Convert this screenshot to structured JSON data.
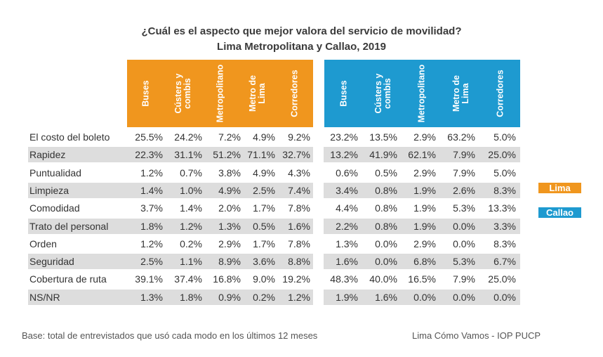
{
  "chart_data": {
    "type": "table",
    "title": "¿Cuál es el aspecto que mejor valora del servicio de movilidad?",
    "subtitle": "Lima Metropolitana y Callao, 2019",
    "columns": [
      "Buses",
      "Cústers y\ncombis",
      "Metropolitano",
      "Metro de\nLima",
      "Corredores"
    ],
    "groups": [
      {
        "name": "Lima",
        "color": "#F0961E"
      },
      {
        "name": "Callao",
        "color": "#1E9AD0"
      }
    ],
    "rows": [
      {
        "label": "El costo del boleto",
        "lima": [
          "25.5%",
          "24.2%",
          "7.2%",
          "4.9%",
          "9.2%"
        ],
        "callao": [
          "23.2%",
          "13.5%",
          "2.9%",
          "63.2%",
          "5.0%"
        ]
      },
      {
        "label": "Rapidez",
        "lima": [
          "22.3%",
          "31.1%",
          "51.2%",
          "71.1%",
          "32.7%"
        ],
        "callao": [
          "13.2%",
          "41.9%",
          "62.1%",
          "7.9%",
          "25.0%"
        ]
      },
      {
        "label": "Puntualidad",
        "lima": [
          "1.2%",
          "0.7%",
          "3.8%",
          "4.9%",
          "4.3%"
        ],
        "callao": [
          "0.6%",
          "0.5%",
          "2.9%",
          "7.9%",
          "5.0%"
        ]
      },
      {
        "label": "Limpieza",
        "lima": [
          "1.4%",
          "1.0%",
          "4.9%",
          "2.5%",
          "7.4%"
        ],
        "callao": [
          "3.4%",
          "0.8%",
          "1.9%",
          "2.6%",
          "8.3%"
        ]
      },
      {
        "label": "Comodidad",
        "lima": [
          "3.7%",
          "1.4%",
          "2.0%",
          "1.7%",
          "7.8%"
        ],
        "callao": [
          "4.4%",
          "0.8%",
          "1.9%",
          "5.3%",
          "13.3%"
        ]
      },
      {
        "label": "Trato del personal",
        "lima": [
          "1.8%",
          "1.2%",
          "1.3%",
          "0.5%",
          "1.6%"
        ],
        "callao": [
          "2.2%",
          "0.8%",
          "1.9%",
          "0.0%",
          "3.3%"
        ]
      },
      {
        "label": "Orden",
        "lima": [
          "1.2%",
          "0.2%",
          "2.9%",
          "1.7%",
          "7.8%"
        ],
        "callao": [
          "1.3%",
          "0.0%",
          "2.9%",
          "0.0%",
          "8.3%"
        ]
      },
      {
        "label": "Seguridad",
        "lima": [
          "2.5%",
          "1.1%",
          "8.9%",
          "3.6%",
          "8.8%"
        ],
        "callao": [
          "1.6%",
          "0.0%",
          "6.8%",
          "5.3%",
          "6.7%"
        ]
      },
      {
        "label": "Cobertura de ruta",
        "lima": [
          "39.1%",
          "37.4%",
          "16.8%",
          "9.0%",
          "19.2%"
        ],
        "callao": [
          "48.3%",
          "40.0%",
          "16.5%",
          "7.9%",
          "25.0%"
        ]
      },
      {
        "label": "NS/NR",
        "lima": [
          "1.3%",
          "1.8%",
          "0.9%",
          "0.2%",
          "1.2%"
        ],
        "callao": [
          "1.9%",
          "1.6%",
          "0.0%",
          "0.0%",
          "0.0%"
        ]
      }
    ],
    "footnote": "Base: total de entrevistados que usó cada modo en los últimos 12 meses",
    "source": "Lima Cómo Vamos - IOP PUCP"
  }
}
